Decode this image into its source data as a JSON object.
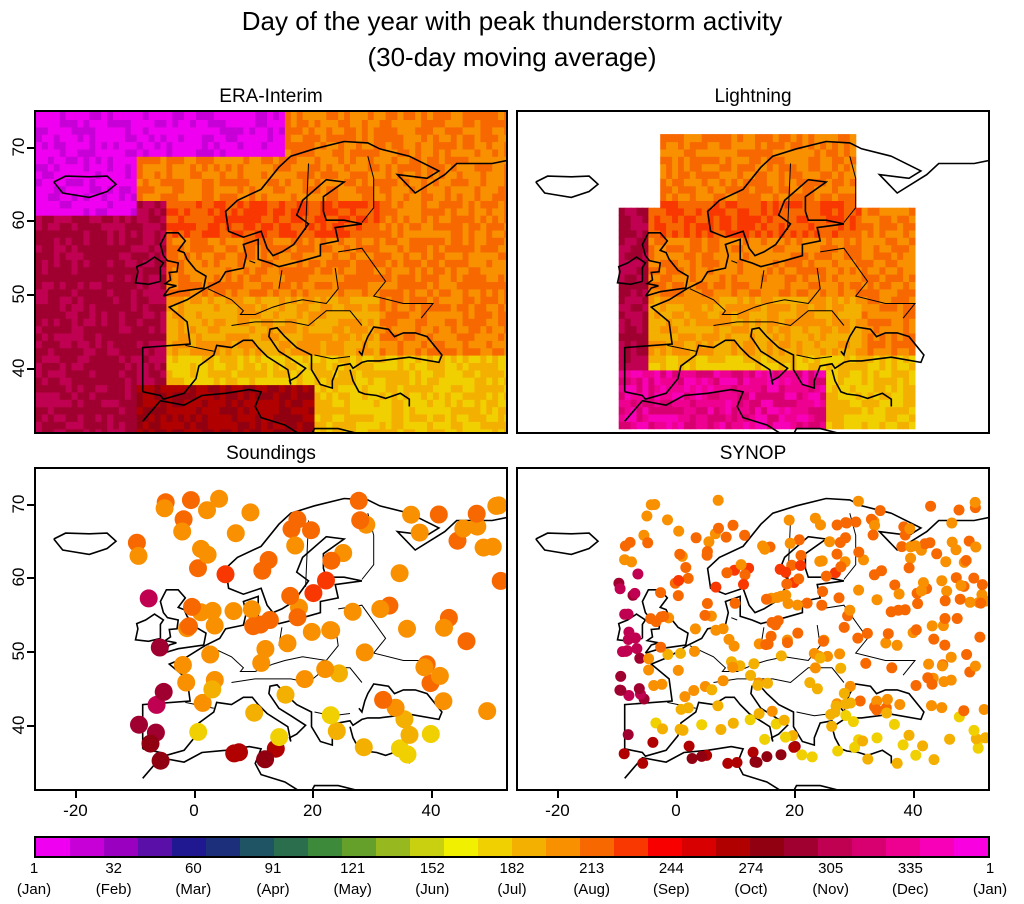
{
  "title_line1": "Day of the year with peak thunderstorm activity",
  "title_line2": "(30-day moving average)",
  "panels": [
    {
      "id": "era",
      "title": "ERA-Interim"
    },
    {
      "id": "lightning",
      "title": "Lightning"
    },
    {
      "id": "soundings",
      "title": "Soundings"
    },
    {
      "id": "synop",
      "title": "SYNOP"
    }
  ],
  "axes": {
    "lat_ticks": [
      "70",
      "60",
      "50",
      "40"
    ],
    "lon_ticks": [
      "-20",
      "0",
      "20",
      "40"
    ],
    "lon_range": [
      -27,
      53
    ],
    "lat_range": [
      31,
      75
    ]
  },
  "colorbar": {
    "colors": [
      "#f000f0",
      "#c800d8",
      "#9a00c0",
      "#5a10a8",
      "#201890",
      "#1c2f7a",
      "#1f5464",
      "#2a6e4e",
      "#3c8a3a",
      "#64a02a",
      "#98b820",
      "#c8d010",
      "#f0f000",
      "#f0d000",
      "#f4b000",
      "#f89000",
      "#f86800",
      "#f83800",
      "#f80000",
      "#d80000",
      "#b00000",
      "#900010",
      "#a00030",
      "#c00050",
      "#d80070",
      "#ee0090",
      "#f800b8",
      "#f800e0"
    ],
    "labels": [
      {
        "day": "1",
        "month": "(Jan)"
      },
      {
        "day": "32",
        "month": "(Feb)"
      },
      {
        "day": "60",
        "month": "(Mar)"
      },
      {
        "day": "91",
        "month": "(Apr)"
      },
      {
        "day": "121",
        "month": "(May)"
      },
      {
        "day": "152",
        "month": "(Jun)"
      },
      {
        "day": "182",
        "month": "(Jul)"
      },
      {
        "day": "213",
        "month": "(Aug)"
      },
      {
        "day": "244",
        "month": "(Sep)"
      },
      {
        "day": "274",
        "month": "(Oct)"
      },
      {
        "day": "305",
        "month": "(Nov)"
      },
      {
        "day": "335",
        "month": "(Dec)"
      },
      {
        "day": "1",
        "month": "(Jan)"
      }
    ]
  }
}
